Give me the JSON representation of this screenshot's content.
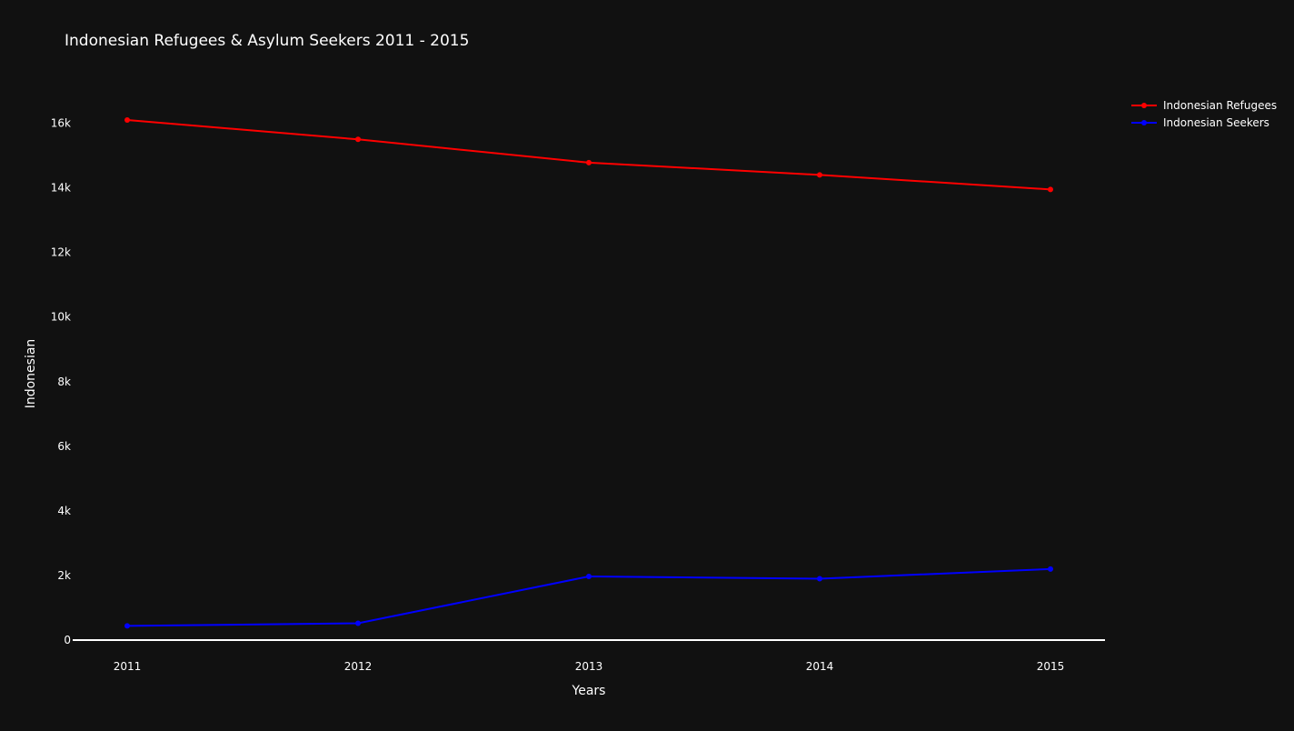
{
  "chart_data": {
    "type": "line",
    "title": "Indonesian Refugees & Asylum Seekers 2011 - 2015",
    "xlabel": "Years",
    "ylabel": "Indonesian",
    "categories": [
      "2011",
      "2012",
      "2013",
      "2014",
      "2015"
    ],
    "ylim": [
      0,
      17000
    ],
    "yticks": [
      0,
      2000,
      4000,
      6000,
      8000,
      10000,
      12000,
      14000,
      16000
    ],
    "ytick_labels": [
      "0",
      "2k",
      "4k",
      "6k",
      "8k",
      "10k",
      "12k",
      "14k",
      "16k"
    ],
    "grid": false,
    "legend_position": "top-right",
    "series": [
      {
        "name": "Indonesian Refugees",
        "color": "#ff0000",
        "values": [
          16100,
          15500,
          14780,
          14400,
          13950
        ]
      },
      {
        "name": "Indonesian Seekers",
        "color": "#0000ff",
        "values": [
          440,
          520,
          1970,
          1900,
          2200
        ]
      }
    ]
  },
  "colors": {
    "background": "#111111",
    "text": "#ffffff",
    "zero_line": "#ffffff"
  }
}
